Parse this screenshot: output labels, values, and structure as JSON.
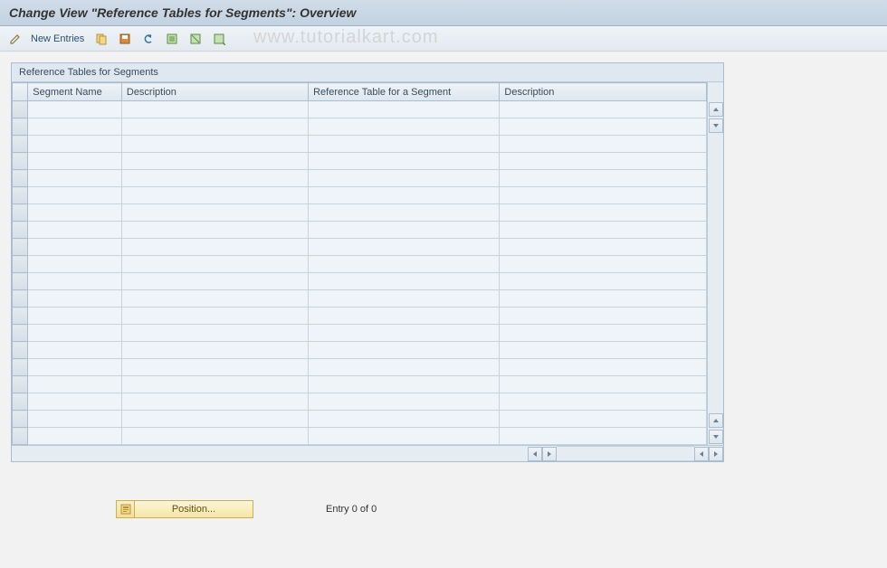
{
  "title": "Change View \"Reference Tables for Segments\": Overview",
  "watermark": "www.tutorialkart.com",
  "toolbar": {
    "new_entries_label": "New Entries"
  },
  "panel": {
    "header": "Reference Tables for Segments",
    "columns": [
      "Segment Name",
      "Description",
      "Reference Table for a Segment",
      "Description"
    ],
    "row_count": 20
  },
  "position_button_label": "Position...",
  "entry_status": "Entry 0 of 0",
  "colors": {
    "title_bg_top": "#d0dce8",
    "title_bg_bot": "#c3d2e0",
    "toolbar_bg_top": "#eef3f7",
    "toolbar_bg_bot": "#e3eaef",
    "border": "#a9bdd0",
    "cell_bg": "#eff4f9",
    "header_bg_top": "#eef3f7",
    "header_bg_bot": "#dde6ee",
    "yellow_top": "#fdf6d8",
    "yellow_bot": "#f5e5a5"
  }
}
